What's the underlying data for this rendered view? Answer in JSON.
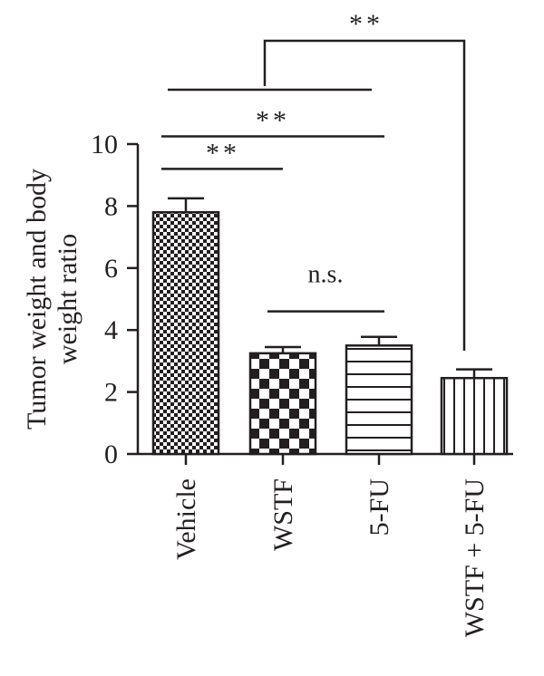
{
  "chart_data": {
    "type": "bar",
    "title": "",
    "xlabel": "",
    "ylabel": "Tumor weight and body weight ratio",
    "ylabel_lines": [
      "Tumor weight and body",
      "weight ratio"
    ],
    "ylim": [
      0,
      10
    ],
    "yticks": [
      0,
      2,
      4,
      6,
      8,
      10
    ],
    "categories": [
      "Vehicle",
      "WSTF",
      "5-FU",
      "WSTF + 5-FU"
    ],
    "values": [
      7.8,
      3.25,
      3.5,
      2.45
    ],
    "errors": [
      0.45,
      0.2,
      0.28,
      0.28
    ],
    "patterns": [
      "fine-checkerboard",
      "coarse-checkerboard",
      "horizontal-stripes",
      "vertical-stripes"
    ],
    "grid": false,
    "legend": "none",
    "annotations": [
      {
        "label": "**",
        "from": "Vehicle",
        "to": "WSTF",
        "y": 9.2
      },
      {
        "label": "**",
        "from": "Vehicle",
        "to": "5-FU",
        "y": 10.25
      },
      {
        "label": "n.s.",
        "from": "WSTF",
        "to": "5-FU",
        "y": 4.6
      },
      {
        "label": "**",
        "from": "Vehicle+WSTF+5-FU bracket",
        "to": "WSTF + 5-FU",
        "y": 13.0
      }
    ],
    "color": "#231f20"
  }
}
